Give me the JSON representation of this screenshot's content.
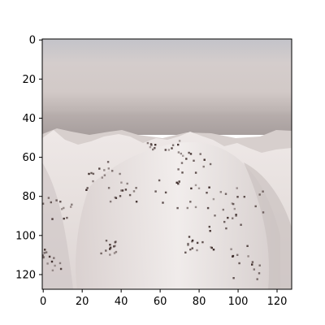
{
  "figure": {
    "kind": "image plot",
    "subject": "snow-covered mountain ridge under a hazy sky",
    "image_size": {
      "width": 128,
      "height": 128
    },
    "colors": {
      "sky_top": "#c2c2c8",
      "sky_mid": "#d6cfcd",
      "haze_band": "#bbb2b0",
      "horizon": "#8e8787",
      "snow_light": "#f2eeee",
      "snow_mid": "#e2dbd9",
      "snow_shadow": "#cfc7c6",
      "rock_dark": "#3a2a28",
      "frame": "#000000"
    }
  },
  "axes": {
    "x_ticks": [
      {
        "value": 0,
        "label": "0"
      },
      {
        "value": 20,
        "label": "20"
      },
      {
        "value": 40,
        "label": "40"
      },
      {
        "value": 60,
        "label": "60"
      },
      {
        "value": 80,
        "label": "80"
      },
      {
        "value": 100,
        "label": "100"
      },
      {
        "value": 120,
        "label": "120"
      }
    ],
    "y_ticks": [
      {
        "value": 0,
        "label": "0"
      },
      {
        "value": 20,
        "label": "20"
      },
      {
        "value": 40,
        "label": "40"
      },
      {
        "value": 60,
        "label": "60"
      },
      {
        "value": 80,
        "label": "80"
      },
      {
        "value": 100,
        "label": "100"
      },
      {
        "value": 120,
        "label": "120"
      }
    ],
    "x_range": [
      0,
      128
    ],
    "y_range": [
      0,
      128
    ]
  }
}
